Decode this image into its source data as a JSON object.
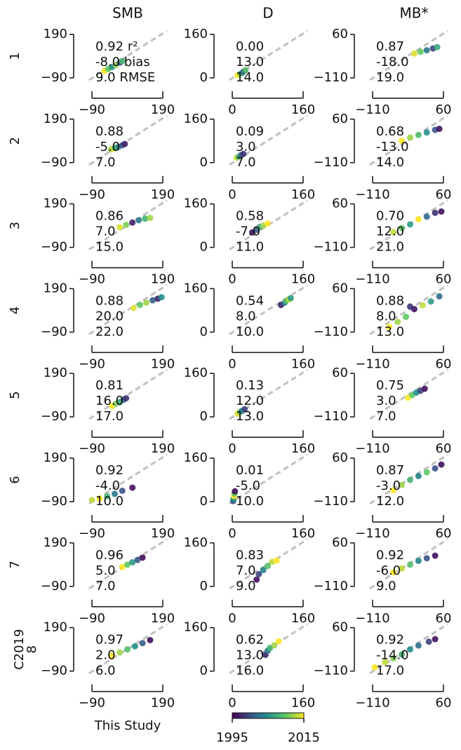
{
  "figure": {
    "column_titles": [
      "SMB",
      "D",
      "MB*"
    ],
    "row_labels": [
      "1",
      "2",
      "3",
      "4",
      "5",
      "6",
      "7",
      "8"
    ],
    "xlabel": "This Study",
    "ylabel": "C2019",
    "identity_line_color": "#c0c0c0",
    "colorbar": {
      "colormap": "viridis",
      "clim": [
        1995,
        2015
      ],
      "ticks": [
        1995,
        2015
      ]
    }
  },
  "chart_data": [
    {
      "type": "scatter",
      "x": [
        -40,
        -25,
        -10,
        5,
        20,
        30
      ],
      "y": [
        -45,
        -32,
        -20,
        -8,
        8,
        18
      ],
      "c": [
        2015,
        2010,
        2005,
        2012,
        2000,
        2008
      ],
      "xlim": [
        -90,
        190
      ],
      "ylim": [
        -90,
        190
      ],
      "xticks": [
        {
          "value": -90,
          "label": "−90"
        },
        190
      ],
      "yticks": [
        {
          "value": -90,
          "label": "−90"
        },
        190
      ],
      "annotations": [
        "0.92",
        "-8.0",
        "9.0"
      ],
      "stat_names": [
        "r²",
        "bias",
        "RMSE"
      ]
    },
    {
      "type": "scatter",
      "x": [
        12,
        18,
        22,
        26,
        30
      ],
      "y": [
        10,
        15,
        18,
        24,
        28
      ],
      "c": [
        2015,
        2011,
        2006,
        2001,
        2009
      ],
      "xlim": [
        0,
        160
      ],
      "ylim": [
        0,
        160
      ],
      "xticks": [
        0,
        160
      ],
      "yticks": [
        0,
        160
      ],
      "annotations": [
        "0.00",
        "13.0",
        "14.0"
      ]
    },
    {
      "type": "scatter",
      "x": [
        -10,
        5,
        20,
        35,
        45
      ],
      "y": [
        -15,
        -8,
        -2,
        5,
        10
      ],
      "c": [
        2014,
        2010,
        2003,
        1999,
        2007
      ],
      "xlim": [
        -110,
        60
      ],
      "ylim": [
        -110,
        60
      ],
      "xticks": [
        {
          "value": -110,
          "label": "−110"
        },
        60
      ],
      "yticks": [
        {
          "value": -110,
          "label": "−110"
        },
        60
      ],
      "annotations": [
        "0.87",
        "-18.0",
        "19.0"
      ]
    },
    {
      "type": "scatter",
      "x": [
        -15,
        -5,
        0,
        15,
        30,
        40
      ],
      "y": [
        -5,
        0,
        5,
        12,
        22,
        30
      ],
      "c": [
        2012,
        2015,
        2008,
        2004,
        2000,
        1997
      ],
      "xlim": [
        -90,
        190
      ],
      "ylim": [
        -90,
        190
      ],
      "xticks": [
        {
          "value": -90,
          "label": "−90"
        },
        190
      ],
      "yticks": [
        {
          "value": -90,
          "label": "−90"
        },
        190
      ],
      "annotations": [
        "0.88",
        "-5.0",
        "7.0"
      ]
    },
    {
      "type": "scatter",
      "x": [
        10,
        15,
        20,
        25
      ],
      "y": [
        18,
        22,
        28,
        32
      ],
      "c": [
        2013,
        2008,
        2002,
        1998
      ],
      "xlim": [
        0,
        160
      ],
      "ylim": [
        0,
        160
      ],
      "xticks": [
        0,
        160
      ],
      "yticks": [
        0,
        160
      ],
      "annotations": [
        "0.09",
        "3.0",
        "7.0"
      ]
    },
    {
      "type": "scatter",
      "x": [
        -40,
        -20,
        0,
        20,
        40,
        50
      ],
      "y": [
        -25,
        -12,
        -2,
        8,
        18,
        22
      ],
      "c": [
        2015,
        2012,
        2009,
        2005,
        2000,
        1996
      ],
      "xlim": [
        -110,
        60
      ],
      "ylim": [
        -110,
        60
      ],
      "xticks": [
        {
          "value": -110,
          "label": "−110"
        },
        60
      ],
      "yticks": [
        {
          "value": -110,
          "label": "−110"
        },
        60
      ],
      "annotations": [
        "0.68",
        "-13.0",
        "14.0"
      ]
    },
    {
      "type": "scatter",
      "x": [
        20,
        45,
        70,
        95,
        120,
        140
      ],
      "y": [
        40,
        55,
        70,
        85,
        95,
        100
      ],
      "c": [
        2014,
        2011,
        1997,
        2003,
        2008,
        2012
      ],
      "xlim": [
        -90,
        190
      ],
      "ylim": [
        -90,
        190
      ],
      "xticks": [
        {
          "value": -90,
          "label": "−90"
        },
        190
      ],
      "yticks": [
        {
          "value": -90,
          "label": "−90"
        },
        190
      ],
      "annotations": [
        "0.86",
        "7.0",
        "15.0"
      ]
    },
    {
      "type": "scatter",
      "x": [
        45,
        55,
        62,
        70,
        80
      ],
      "y": [
        55,
        65,
        75,
        80,
        88
      ],
      "c": [
        1996,
        2001,
        2007,
        2012,
        2015
      ],
      "xlim": [
        0,
        160
      ],
      "ylim": [
        0,
        160
      ],
      "xticks": [
        0,
        160
      ],
      "yticks": [
        0,
        160
      ],
      "annotations": [
        "0.58",
        "-7.0",
        "11.0"
      ]
    },
    {
      "type": "scatter",
      "x": [
        -60,
        -40,
        -20,
        0,
        20,
        40,
        55
      ],
      "y": [
        -50,
        -35,
        -20,
        0,
        10,
        25,
        30
      ],
      "c": [
        2013,
        2010,
        2006,
        2015,
        2002,
        1998,
        1996
      ],
      "xlim": [
        -110,
        60
      ],
      "ylim": [
        -110,
        60
      ],
      "xticks": [
        {
          "value": -110,
          "label": "−110"
        },
        60
      ],
      "yticks": [
        {
          "value": -110,
          "label": "−110"
        },
        60
      ],
      "annotations": [
        "0.70",
        "12.0",
        "21.0"
      ]
    },
    {
      "type": "scatter",
      "x": [
        75,
        100,
        125,
        150,
        170,
        185
      ],
      "y": [
        65,
        85,
        100,
        115,
        125,
        135
      ],
      "c": [
        2014,
        2010,
        2012,
        2001,
        1997,
        2005
      ],
      "xlim": [
        -90,
        190
      ],
      "ylim": [
        -90,
        190
      ],
      "xticks": [
        {
          "value": -90,
          "label": "−90"
        },
        190
      ],
      "yticks": [
        {
          "value": -90,
          "label": "−90"
        },
        190
      ],
      "annotations": [
        "0.88",
        "20.0",
        "22.0"
      ]
    },
    {
      "type": "scatter",
      "x": [
        110,
        118,
        122,
        128,
        132
      ],
      "y": [
        100,
        108,
        115,
        120,
        125
      ],
      "c": [
        1997,
        2003,
        2009,
        2013,
        2006
      ],
      "xlim": [
        0,
        160
      ],
      "ylim": [
        0,
        160
      ],
      "xticks": [
        0,
        160
      ],
      "yticks": [
        0,
        160
      ],
      "annotations": [
        "0.54",
        "8.0",
        "10.0"
      ]
    },
    {
      "type": "scatter",
      "x": [
        -70,
        -50,
        -30,
        -10,
        10,
        30,
        50,
        -20
      ],
      "y": [
        -90,
        -70,
        -50,
        -20,
        -5,
        10,
        30,
        -10
      ],
      "c": [
        2015,
        2012,
        2010,
        1996,
        2013,
        2006,
        2002,
        1998
      ],
      "xlim": [
        -110,
        60
      ],
      "ylim": [
        -110,
        60
      ],
      "xticks": [
        {
          "value": -110,
          "label": "−110"
        },
        60
      ],
      "yticks": [
        {
          "value": -110,
          "label": "−110"
        },
        60
      ],
      "annotations": [
        "0.88",
        "8.0",
        "13.0"
      ]
    },
    {
      "type": "scatter",
      "x": [
        -10,
        5,
        20,
        35,
        45
      ],
      "y": [
        -20,
        -5,
        5,
        20,
        30
      ],
      "c": [
        2015,
        2011,
        2007,
        2002,
        1998
      ],
      "xlim": [
        -90,
        190
      ],
      "ylim": [
        -90,
        190
      ],
      "xticks": [
        {
          "value": -90,
          "label": "−90"
        },
        190
      ],
      "yticks": [
        {
          "value": -90,
          "label": "−90"
        },
        190
      ],
      "annotations": [
        "0.81",
        "16.0",
        "17.0"
      ]
    },
    {
      "type": "scatter",
      "x": [
        12,
        18,
        22,
        28
      ],
      "y": [
        12,
        18,
        22,
        28
      ],
      "c": [
        2014,
        2009,
        2004,
        1999
      ],
      "xlim": [
        0,
        160
      ],
      "ylim": [
        0,
        160
      ],
      "xticks": [
        0,
        160
      ],
      "yticks": [
        0,
        160
      ],
      "annotations": [
        "0.13",
        "12.0",
        "13.0"
      ]
    },
    {
      "type": "scatter",
      "x": [
        -25,
        -15,
        -5,
        5,
        15
      ],
      "y": [
        -35,
        -25,
        -15,
        -8,
        0
      ],
      "c": [
        2015,
        2010,
        2005,
        1999,
        1996
      ],
      "xlim": [
        -110,
        60
      ],
      "ylim": [
        -110,
        60
      ],
      "xticks": [
        {
          "value": -110,
          "label": "−110"
        },
        60
      ],
      "yticks": [
        {
          "value": -110,
          "label": "−110"
        },
        60
      ],
      "annotations": [
        "0.75",
        "3.0",
        "7.0"
      ]
    },
    {
      "type": "scatter",
      "x": [
        -90,
        -60,
        -30,
        0,
        30,
        70
      ],
      "y": [
        -80,
        -70,
        -55,
        -40,
        -20,
        0
      ],
      "c": [
        2013,
        2015,
        2008,
        2003,
        2000,
        1996
      ],
      "xlim": [
        -90,
        190
      ],
      "ylim": [
        -90,
        190
      ],
      "xticks": [
        {
          "value": -90,
          "label": "−90"
        },
        190
      ],
      "yticks": [
        {
          "value": -90,
          "label": "−90"
        },
        190
      ],
      "annotations": [
        "0.92",
        "-4.0",
        "10.0"
      ]
    },
    {
      "type": "scatter",
      "x": [
        2,
        3,
        4,
        5,
        6
      ],
      "y": [
        2,
        10,
        20,
        30,
        38
      ],
      "c": [
        2000,
        2005,
        2015,
        2010,
        1996
      ],
      "xlim": [
        0,
        160
      ],
      "ylim": [
        0,
        160
      ],
      "xticks": [
        0,
        160
      ],
      "yticks": [
        0,
        160
      ],
      "annotations": [
        "0.01",
        "-5.0",
        "10.0"
      ]
    },
    {
      "type": "scatter",
      "x": [
        -60,
        -40,
        -20,
        0,
        20,
        40,
        55
      ],
      "y": [
        -65,
        -45,
        -25,
        -10,
        5,
        20,
        35
      ],
      "c": [
        2015,
        2012,
        2008,
        2004,
        2010,
        2000,
        1996
      ],
      "xlim": [
        -110,
        60
      ],
      "ylim": [
        -110,
        60
      ],
      "xticks": [
        {
          "value": -110,
          "label": "−110"
        },
        60
      ],
      "yticks": [
        {
          "value": -110,
          "label": "−110"
        },
        60
      ],
      "annotations": [
        "0.87",
        "-3.0",
        "12.0"
      ]
    },
    {
      "type": "scatter",
      "x": [
        30,
        50,
        70,
        90,
        110
      ],
      "y": [
        35,
        50,
        65,
        80,
        95
      ],
      "c": [
        2015,
        2010,
        2006,
        2001,
        1996
      ],
      "xlim": [
        -90,
        190
      ],
      "ylim": [
        -90,
        190
      ],
      "xticks": [
        {
          "value": -90,
          "label": "−90"
        },
        190
      ],
      "yticks": [
        {
          "value": -90,
          "label": "−90"
        },
        190
      ],
      "annotations": [
        "0.96",
        "5.0",
        "7.0"
      ]
    },
    {
      "type": "scatter",
      "x": [
        55,
        60,
        70,
        80,
        90,
        100
      ],
      "y": [
        25,
        45,
        60,
        75,
        90,
        95
      ],
      "c": [
        1996,
        1999,
        2004,
        2009,
        2013,
        2015
      ],
      "xlim": [
        0,
        160
      ],
      "ylim": [
        0,
        160
      ],
      "xticks": [
        0,
        160
      ],
      "yticks": [
        0,
        160
      ],
      "annotations": [
        "0.83",
        "7.0",
        "9.0"
      ]
    },
    {
      "type": "scatter",
      "x": [
        -60,
        -40,
        -20,
        0,
        20,
        40
      ],
      "y": [
        -55,
        -40,
        -25,
        -10,
        0,
        10
      ],
      "c": [
        2015,
        2013,
        2009,
        2004,
        2000,
        1996
      ],
      "xlim": [
        -110,
        60
      ],
      "ylim": [
        -110,
        60
      ],
      "xticks": [
        {
          "value": -110,
          "label": "−110"
        },
        60
      ],
      "yticks": [
        {
          "value": -110,
          "label": "−110"
        },
        60
      ],
      "annotations": [
        "0.92",
        "-6.0",
        "9.0"
      ]
    },
    {
      "type": "scatter",
      "x": [
        -10,
        20,
        50,
        80,
        110,
        140
      ],
      "y": [
        10,
        30,
        50,
        70,
        90,
        110
      ],
      "c": [
        2015,
        2012,
        2009,
        2005,
        2001,
        1996
      ],
      "xlim": [
        -90,
        190
      ],
      "ylim": [
        -90,
        190
      ],
      "xticks": [
        {
          "value": -90,
          "label": "−90"
        },
        190
      ],
      "yticks": [
        {
          "value": -90,
          "label": "−90"
        },
        190
      ],
      "annotations": [
        "0.97",
        "2.0",
        "6.0"
      ]
    },
    {
      "type": "scatter",
      "x": [
        75,
        80,
        85,
        95,
        105
      ],
      "y": [
        60,
        75,
        85,
        95,
        110
      ],
      "c": [
        1997,
        2003,
        2008,
        2012,
        2015
      ],
      "xlim": [
        0,
        160
      ],
      "ylim": [
        0,
        160
      ],
      "xticks": [
        0,
        160
      ],
      "yticks": [
        0,
        160
      ],
      "annotations": [
        "0.62",
        "13.0",
        "16.0"
      ]
    },
    {
      "type": "scatter",
      "x": [
        -105,
        -80,
        -60,
        -40,
        -20,
        0,
        25,
        40
      ],
      "y": [
        -95,
        -75,
        -60,
        -45,
        -25,
        -10,
        5,
        15
      ],
      "c": [
        2015,
        2013,
        2011,
        2008,
        2005,
        2002,
        1999,
        1996
      ],
      "xlim": [
        -110,
        60
      ],
      "ylim": [
        -110,
        60
      ],
      "xticks": [
        {
          "value": -110,
          "label": "−110"
        },
        60
      ],
      "yticks": [
        {
          "value": -110,
          "label": "−110"
        },
        60
      ],
      "annotations": [
        "0.92",
        "-14.0",
        "17.0"
      ]
    }
  ]
}
